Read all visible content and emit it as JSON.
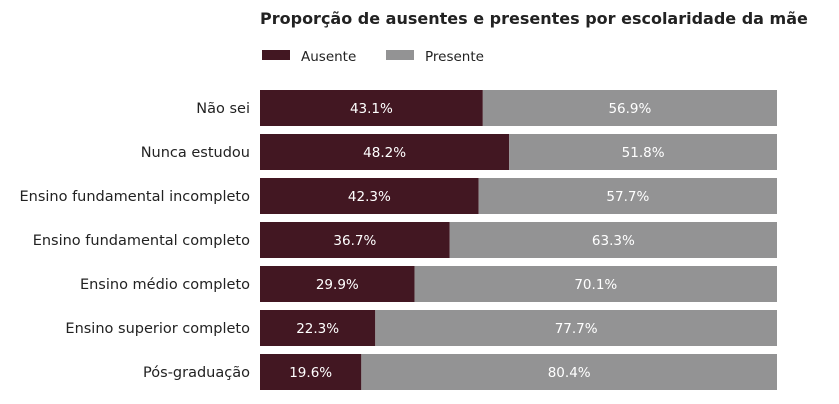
{
  "chart_data": {
    "type": "bar",
    "orientation": "horizontal",
    "stacked": true,
    "title": "Proporção de ausentes e presentes por escolaridade da mãe",
    "xlabel": "",
    "ylabel": "",
    "xlim": [
      0,
      100
    ],
    "grid": false,
    "legend_position": "top-left",
    "categories": [
      "Não sei",
      "Nunca estudou",
      "Ensino fundamental incompleto",
      "Ensino fundamental completo",
      "Ensino médio completo",
      "Ensino superior completo",
      "Pós-graduação"
    ],
    "series": [
      {
        "name": "Ausente",
        "color": "#421722",
        "values": [
          43.1,
          48.2,
          42.3,
          36.7,
          29.9,
          22.3,
          19.6
        ],
        "labels": [
          "43.1%",
          "48.2%",
          "42.3%",
          "36.7%",
          "29.9%",
          "22.3%",
          "19.6%"
        ]
      },
      {
        "name": "Presente",
        "color": "#939394",
        "values": [
          56.9,
          51.8,
          57.7,
          63.3,
          70.1,
          77.7,
          80.4
        ],
        "labels": [
          "56.9%",
          "51.8%",
          "57.7%",
          "63.3%",
          "70.1%",
          "77.7%",
          "80.4%"
        ]
      }
    ]
  }
}
